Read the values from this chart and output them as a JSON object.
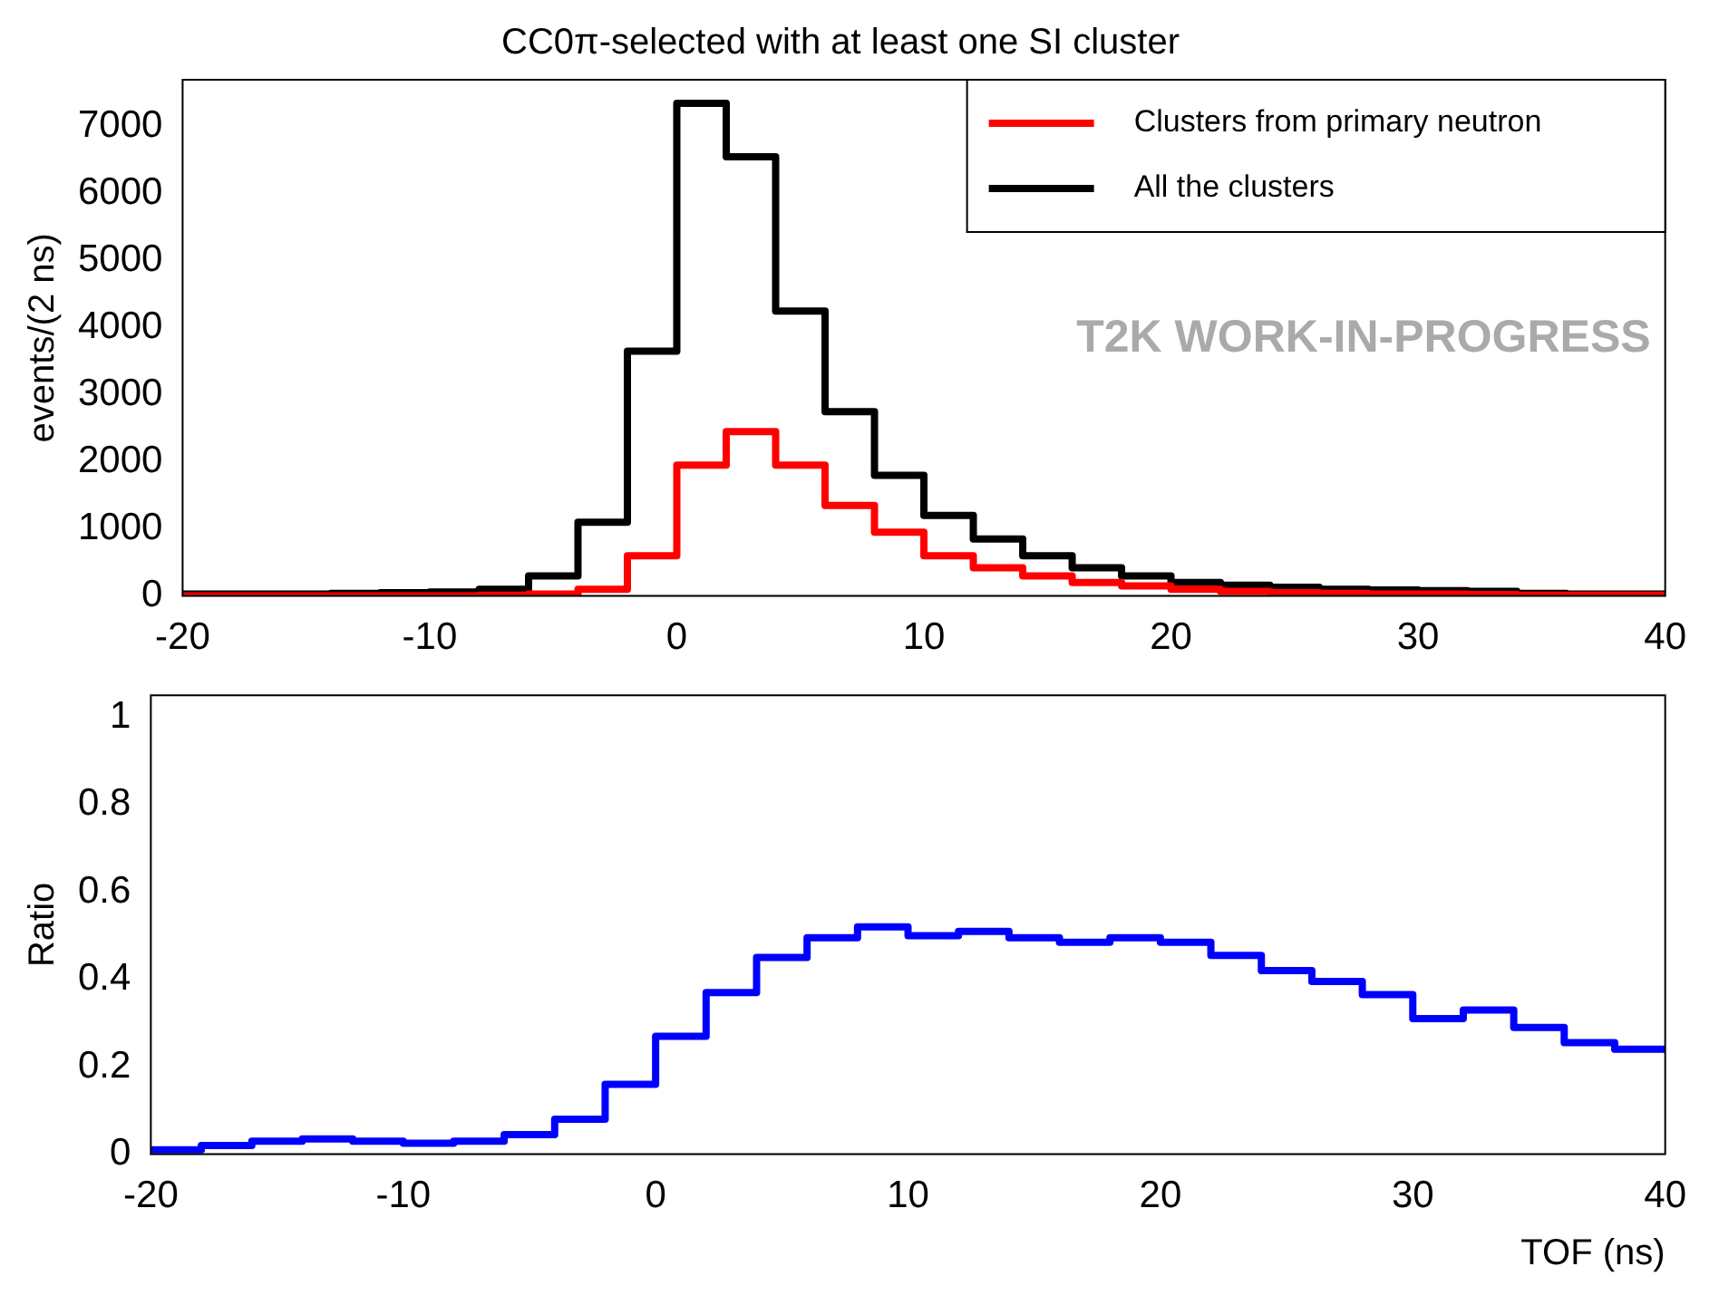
{
  "chart_data": [
    {
      "type": "histogram",
      "title": "CC0π-selected with at least one SI cluster",
      "ylabel": "events/(2 ns)",
      "bins": [
        -20,
        -18,
        -16,
        -14,
        -12,
        -10,
        -8,
        -6,
        -4,
        -2,
        0,
        2,
        4,
        6,
        8,
        10,
        12,
        14,
        16,
        18,
        20,
        22,
        24,
        26,
        28,
        30,
        32,
        34,
        36,
        38,
        40
      ],
      "series": [
        {
          "name": "Clusters from primary neutron",
          "color": "#ff0000",
          "values": [
            0,
            0,
            0,
            0,
            0,
            0,
            10,
            30,
            100,
            600,
            1950,
            2450,
            1950,
            1350,
            950,
            600,
            420,
            300,
            200,
            150,
            100,
            70,
            50,
            40,
            30,
            30,
            20,
            10,
            10,
            10
          ]
        },
        {
          "name": "All the clusters",
          "color": "#000000",
          "values": [
            30,
            30,
            30,
            40,
            50,
            60,
            100,
            300,
            1100,
            3650,
            7350,
            6550,
            4250,
            2750,
            1800,
            1200,
            850,
            600,
            420,
            300,
            200,
            160,
            130,
            100,
            90,
            80,
            70,
            40,
            30,
            30
          ]
        }
      ],
      "xlim": [
        -20,
        40
      ],
      "xticks": [
        -20,
        -10,
        0,
        10,
        20,
        30,
        40
      ],
      "ylim": [
        0,
        7700
      ],
      "yticks": [
        0,
        1000,
        2000,
        3000,
        4000,
        5000,
        6000,
        7000
      ],
      "grid": false,
      "legend": "top right",
      "annotations": [
        "T2K WORK-IN-PROGRESS"
      ]
    },
    {
      "type": "histogram",
      "xlabel": "TOF (ns)",
      "ylabel": "Ratio",
      "bins": [
        -20,
        -18,
        -16,
        -14,
        -12,
        -10,
        -8,
        -6,
        -4,
        -2,
        0,
        2,
        4,
        6,
        8,
        10,
        12,
        14,
        16,
        18,
        20,
        22,
        24,
        26,
        28,
        30,
        32,
        34,
        36,
        38,
        40
      ],
      "series": [
        {
          "color": "#0000ff",
          "values": [
            0.01,
            0.02,
            0.03,
            0.035,
            0.03,
            0.025,
            0.03,
            0.045,
            0.08,
            0.16,
            0.27,
            0.37,
            0.45,
            0.495,
            0.52,
            0.5,
            0.51,
            0.495,
            0.485,
            0.495,
            0.485,
            0.455,
            0.42,
            0.395,
            0.365,
            0.31,
            0.33,
            0.29,
            0.255,
            0.24
          ]
        }
      ],
      "xlim": [
        -20,
        40
      ],
      "xticks": [
        -20,
        -10,
        0,
        10,
        20,
        30,
        40
      ],
      "ylim": [
        0,
        1.05
      ],
      "yticks": [
        0,
        0.2,
        0.4,
        0.6,
        0.8,
        1
      ],
      "grid": false,
      "legend": false
    }
  ]
}
